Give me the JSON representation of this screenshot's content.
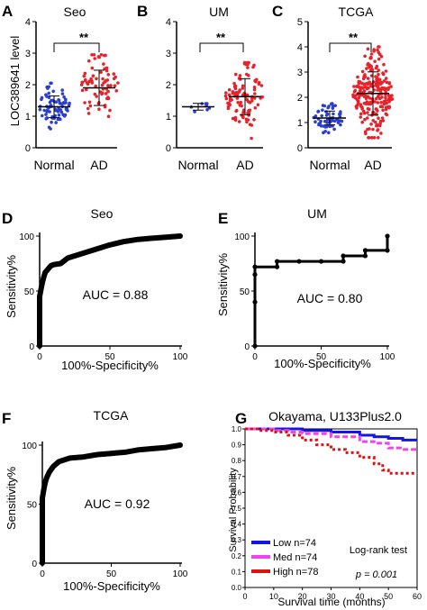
{
  "colors": {
    "normal": "#2a3fcf",
    "ad": "#e8222a",
    "low": "#1414e6",
    "med": "#ee44ee",
    "high": "#dd1111",
    "black": "#000000"
  },
  "chart_data": [
    {
      "id": "A",
      "panel_label": "A",
      "type": "scatter",
      "title": "Seo",
      "ylabel": "LOC389641 level",
      "categories": [
        "Normal",
        "AD"
      ],
      "ylim": [
        0,
        4
      ],
      "yticks": [
        0,
        1,
        2,
        3,
        4
      ],
      "medians": [
        1.3,
        1.9
      ],
      "n": [
        74,
        74
      ],
      "spread": [
        [
          0.6,
          2.05
        ],
        [
          0.6,
          2.95
        ]
      ],
      "significance": "**"
    },
    {
      "id": "B",
      "panel_label": "B",
      "type": "scatter",
      "title": "UM",
      "categories": [
        "Normal",
        "AD"
      ],
      "ylim": [
        0,
        4
      ],
      "yticks": [
        0,
        1,
        2,
        3,
        4
      ],
      "medians": [
        1.3,
        1.62
      ],
      "n": [
        8,
        100
      ],
      "spread": [
        [
          0.95,
          1.4
        ],
        [
          0.3,
          2.7
        ]
      ],
      "significance": "**"
    },
    {
      "id": "C",
      "panel_label": "C",
      "type": "scatter",
      "title": "TCGA",
      "categories": [
        "Normal",
        "AD"
      ],
      "ylim": [
        0,
        5
      ],
      "yticks": [
        0,
        1,
        2,
        3,
        4,
        5
      ],
      "medians": [
        1.18,
        2.15
      ],
      "n": [
        60,
        240
      ],
      "spread": [
        [
          0.6,
          1.75
        ],
        [
          0.4,
          4.0
        ]
      ],
      "significance": "**"
    },
    {
      "id": "D",
      "panel_label": "D",
      "type": "line",
      "title": "Seo",
      "xlabel": "100%-Specificity%",
      "ylabel": "Sensitivity%",
      "xlim": [
        0,
        100
      ],
      "ylim": [
        0,
        100
      ],
      "xticks": [
        0,
        50,
        100
      ],
      "yticks": [
        0,
        50,
        100
      ],
      "annotation": "AUC = 0.88",
      "x": [
        0,
        0,
        0,
        1,
        2,
        3,
        4,
        6,
        8,
        10,
        15,
        20,
        30,
        40,
        50,
        60,
        70,
        80,
        90,
        100
      ],
      "y": [
        0,
        30,
        45,
        52,
        58,
        63,
        67,
        70,
        73,
        74,
        75,
        80,
        84,
        88,
        92,
        95,
        97,
        98,
        99,
        100
      ]
    },
    {
      "id": "E",
      "panel_label": "E",
      "type": "line",
      "title": "UM",
      "xlabel": "100%-Specificity%",
      "ylabel": "Sensitivity%",
      "xlim": [
        0,
        100
      ],
      "ylim": [
        0,
        100
      ],
      "xticks": [
        0,
        50,
        100
      ],
      "yticks": [
        0,
        50,
        100
      ],
      "annotation": "AUC = 0.80",
      "x": [
        0,
        0,
        0,
        0,
        16.7,
        16.7,
        33.3,
        50,
        66.7,
        66.7,
        83.3,
        83.3,
        100,
        100
      ],
      "y": [
        0,
        40,
        65,
        72,
        72,
        77,
        77,
        77,
        77,
        82,
        82,
        87,
        87,
        100
      ]
    },
    {
      "id": "F",
      "panel_label": "F",
      "type": "line",
      "title": "TCGA",
      "xlabel": "100%-Specificity%",
      "ylabel": "Sensitivity%",
      "xlim": [
        0,
        100
      ],
      "ylim": [
        0,
        100
      ],
      "xticks": [
        0,
        50,
        100
      ],
      "yticks": [
        0,
        50,
        100
      ],
      "annotation": "AUC = 0.92",
      "x": [
        0,
        0,
        0,
        1,
        2,
        3,
        5,
        8,
        12,
        20,
        30,
        40,
        50,
        60,
        70,
        80,
        90,
        100
      ],
      "y": [
        0,
        40,
        55,
        62,
        68,
        72,
        77,
        82,
        86,
        89,
        90,
        92,
        93,
        94,
        96,
        97,
        98,
        100
      ]
    },
    {
      "id": "G",
      "panel_label": "G",
      "type": "line",
      "title": "Okayama, U133Plus2.0",
      "xlabel": "Survival time (months)",
      "ylabel": "Survival Probability",
      "xlim": [
        0,
        60
      ],
      "ylim": [
        0,
        1
      ],
      "xticks": [
        0,
        10,
        20,
        30,
        40,
        50,
        60
      ],
      "yticks": [
        0,
        0.1,
        0.2,
        0.3,
        0.4,
        0.5,
        0.6,
        0.7,
        0.8,
        0.9,
        1.0
      ],
      "series": [
        {
          "name": "Low n=74",
          "x": [
            0,
            10,
            20,
            30,
            40,
            45,
            50,
            55,
            60
          ],
          "y": [
            1,
            1,
            0.99,
            0.98,
            0.96,
            0.95,
            0.94,
            0.93,
            0.93
          ]
        },
        {
          "name": "Med n=74",
          "x": [
            0,
            10,
            15,
            20,
            30,
            40,
            45,
            50,
            55,
            60
          ],
          "y": [
            1,
            0.99,
            0.98,
            0.97,
            0.95,
            0.92,
            0.91,
            0.88,
            0.87,
            0.86
          ]
        },
        {
          "name": "High n=78",
          "x": [
            0,
            5,
            10,
            15,
            20,
            25,
            30,
            35,
            40,
            45,
            48,
            50,
            55,
            60
          ],
          "y": [
            1,
            0.99,
            0.98,
            0.96,
            0.93,
            0.9,
            0.87,
            0.85,
            0.82,
            0.78,
            0.74,
            0.72,
            0.72,
            0.72
          ]
        }
      ],
      "stat_test": "Log-rank test",
      "p_value": "p = 0.001"
    }
  ]
}
